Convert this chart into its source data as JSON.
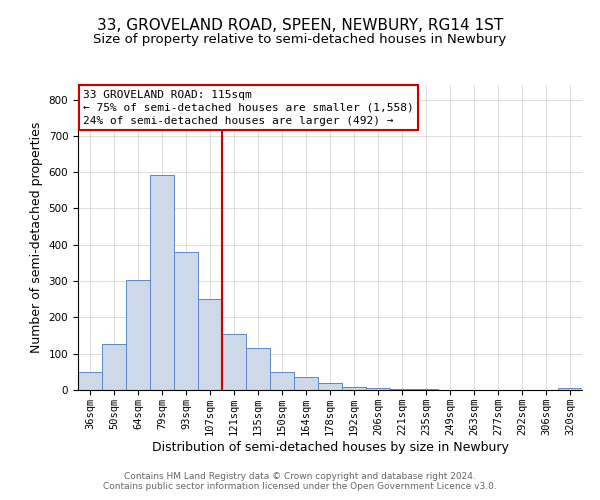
{
  "title": "33, GROVELAND ROAD, SPEEN, NEWBURY, RG14 1ST",
  "subtitle": "Size of property relative to semi-detached houses in Newbury",
  "xlabel": "Distribution of semi-detached houses by size in Newbury",
  "ylabel": "Number of semi-detached properties",
  "categories": [
    "36sqm",
    "50sqm",
    "64sqm",
    "79sqm",
    "93sqm",
    "107sqm",
    "121sqm",
    "135sqm",
    "150sqm",
    "164sqm",
    "178sqm",
    "192sqm",
    "206sqm",
    "221sqm",
    "235sqm",
    "249sqm",
    "263sqm",
    "277sqm",
    "292sqm",
    "306sqm",
    "320sqm"
  ],
  "bar_heights": [
    50,
    128,
    303,
    592,
    380,
    252,
    153,
    116,
    50,
    35,
    20,
    8,
    5,
    3,
    2,
    1,
    1,
    1,
    0,
    0,
    5
  ],
  "bar_color_fill": "#cdd8e8",
  "bar_color_edge": "#5b87c5",
  "ylim": [
    0,
    840
  ],
  "yticks": [
    0,
    100,
    200,
    300,
    400,
    500,
    600,
    700,
    800
  ],
  "vline_x": 5.5,
  "vline_color": "#cc0000",
  "annotation_line1": "33 GROVELAND ROAD: 115sqm",
  "annotation_line2": "← 75% of semi-detached houses are smaller (1,558)",
  "annotation_line3": "24% of semi-detached houses are larger (492) →",
  "footer_line1": "Contains HM Land Registry data © Crown copyright and database right 2024.",
  "footer_line2": "Contains public sector information licensed under the Open Government Licence v3.0.",
  "background_color": "#ffffff",
  "grid_color": "#d0d0d0",
  "title_fontsize": 11,
  "subtitle_fontsize": 9.5,
  "axis_label_fontsize": 9,
  "tick_fontsize": 7.5,
  "footer_fontsize": 6.5,
  "annotation_fontsize": 8
}
